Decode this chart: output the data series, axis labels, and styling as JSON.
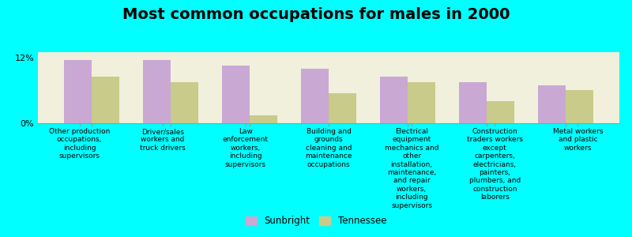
{
  "title": "Most common occupations for males in 2000",
  "background_color": "#00FFFF",
  "plot_background_color": "#F0F0DC",
  "bar_color_sunbright": "#C9A8D4",
  "bar_color_tennessee": "#C8CB8A",
  "categories": [
    "Other production\noccupations,\nincluding\nsupervisors",
    "Driver/sales\nworkers and\ntruck drivers",
    "Law\nenforcement\nworkers,\nincluding\nsupervisors",
    "Building and\ngrounds\ncleaning and\nmaintenance\noccupations",
    "Electrical\nequipment\nmechanics and\nother\ninstallation,\nmaintenance,\nand repair\nworkers,\nincluding\nsupervisors",
    "Construction\ntraders workers\nexcept\ncarpenters,\nelectricians,\npainters,\nplumbers, and\nconstruction\nlaborers",
    "Metal workers\nand plastic\nworkers"
  ],
  "sunbright_values": [
    11.5,
    11.5,
    10.5,
    10.0,
    8.5,
    7.5,
    7.0
  ],
  "tennessee_values": [
    8.5,
    7.5,
    1.5,
    5.5,
    7.5,
    4.0,
    6.0
  ],
  "ylim": [
    0,
    13
  ],
  "yticks": [
    0,
    12
  ],
  "ytick_labels": [
    "0%",
    "12%"
  ],
  "legend_labels": [
    "Sunbright",
    "Tennessee"
  ],
  "bar_width": 0.35,
  "title_fontsize": 14,
  "axis_label_fontsize": 6.5,
  "legend_fontsize": 8.5
}
